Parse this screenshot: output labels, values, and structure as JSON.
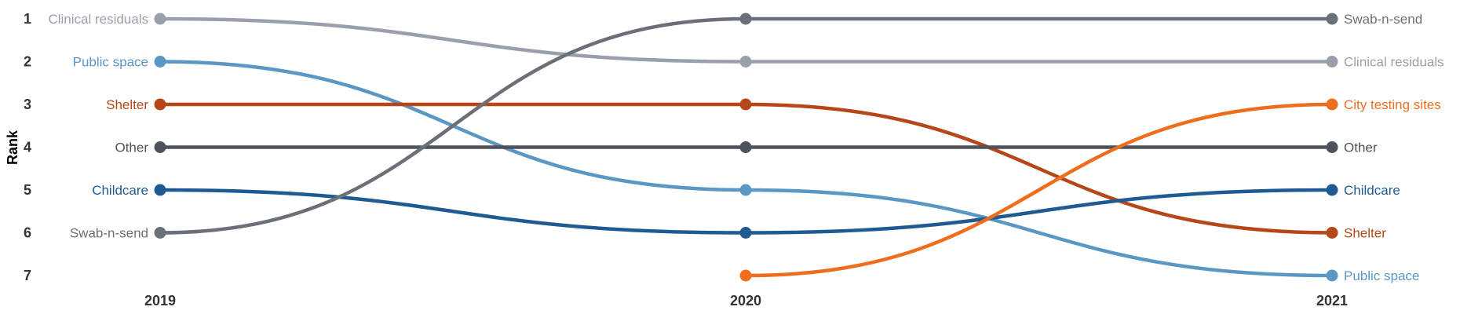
{
  "chart_data": {
    "type": "bump",
    "ylabel": "Rank",
    "x": [
      "2019",
      "2020",
      "2021"
    ],
    "ranks": [
      "1",
      "2",
      "3",
      "4",
      "5",
      "6",
      "7"
    ],
    "series": [
      {
        "name": "Clinical residuals",
        "color": "#9aa0ab",
        "ranks": [
          1,
          2,
          2
        ]
      },
      {
        "name": "Public space",
        "color": "#5b97c5",
        "ranks": [
          2,
          5,
          7
        ]
      },
      {
        "name": "Shelter",
        "color": "#b5471a",
        "ranks": [
          3,
          3,
          6
        ]
      },
      {
        "name": "Other",
        "color": "#4d525c",
        "ranks": [
          4,
          4,
          4
        ]
      },
      {
        "name": "Childcare",
        "color": "#1f5a92",
        "ranks": [
          5,
          6,
          5
        ]
      },
      {
        "name": "Swab-n-send",
        "color": "#6b6f78",
        "ranks": [
          6,
          1,
          1
        ]
      },
      {
        "name": "City testing sites",
        "color": "#ee6e1e",
        "ranks": [
          null,
          7,
          3
        ]
      }
    ]
  }
}
